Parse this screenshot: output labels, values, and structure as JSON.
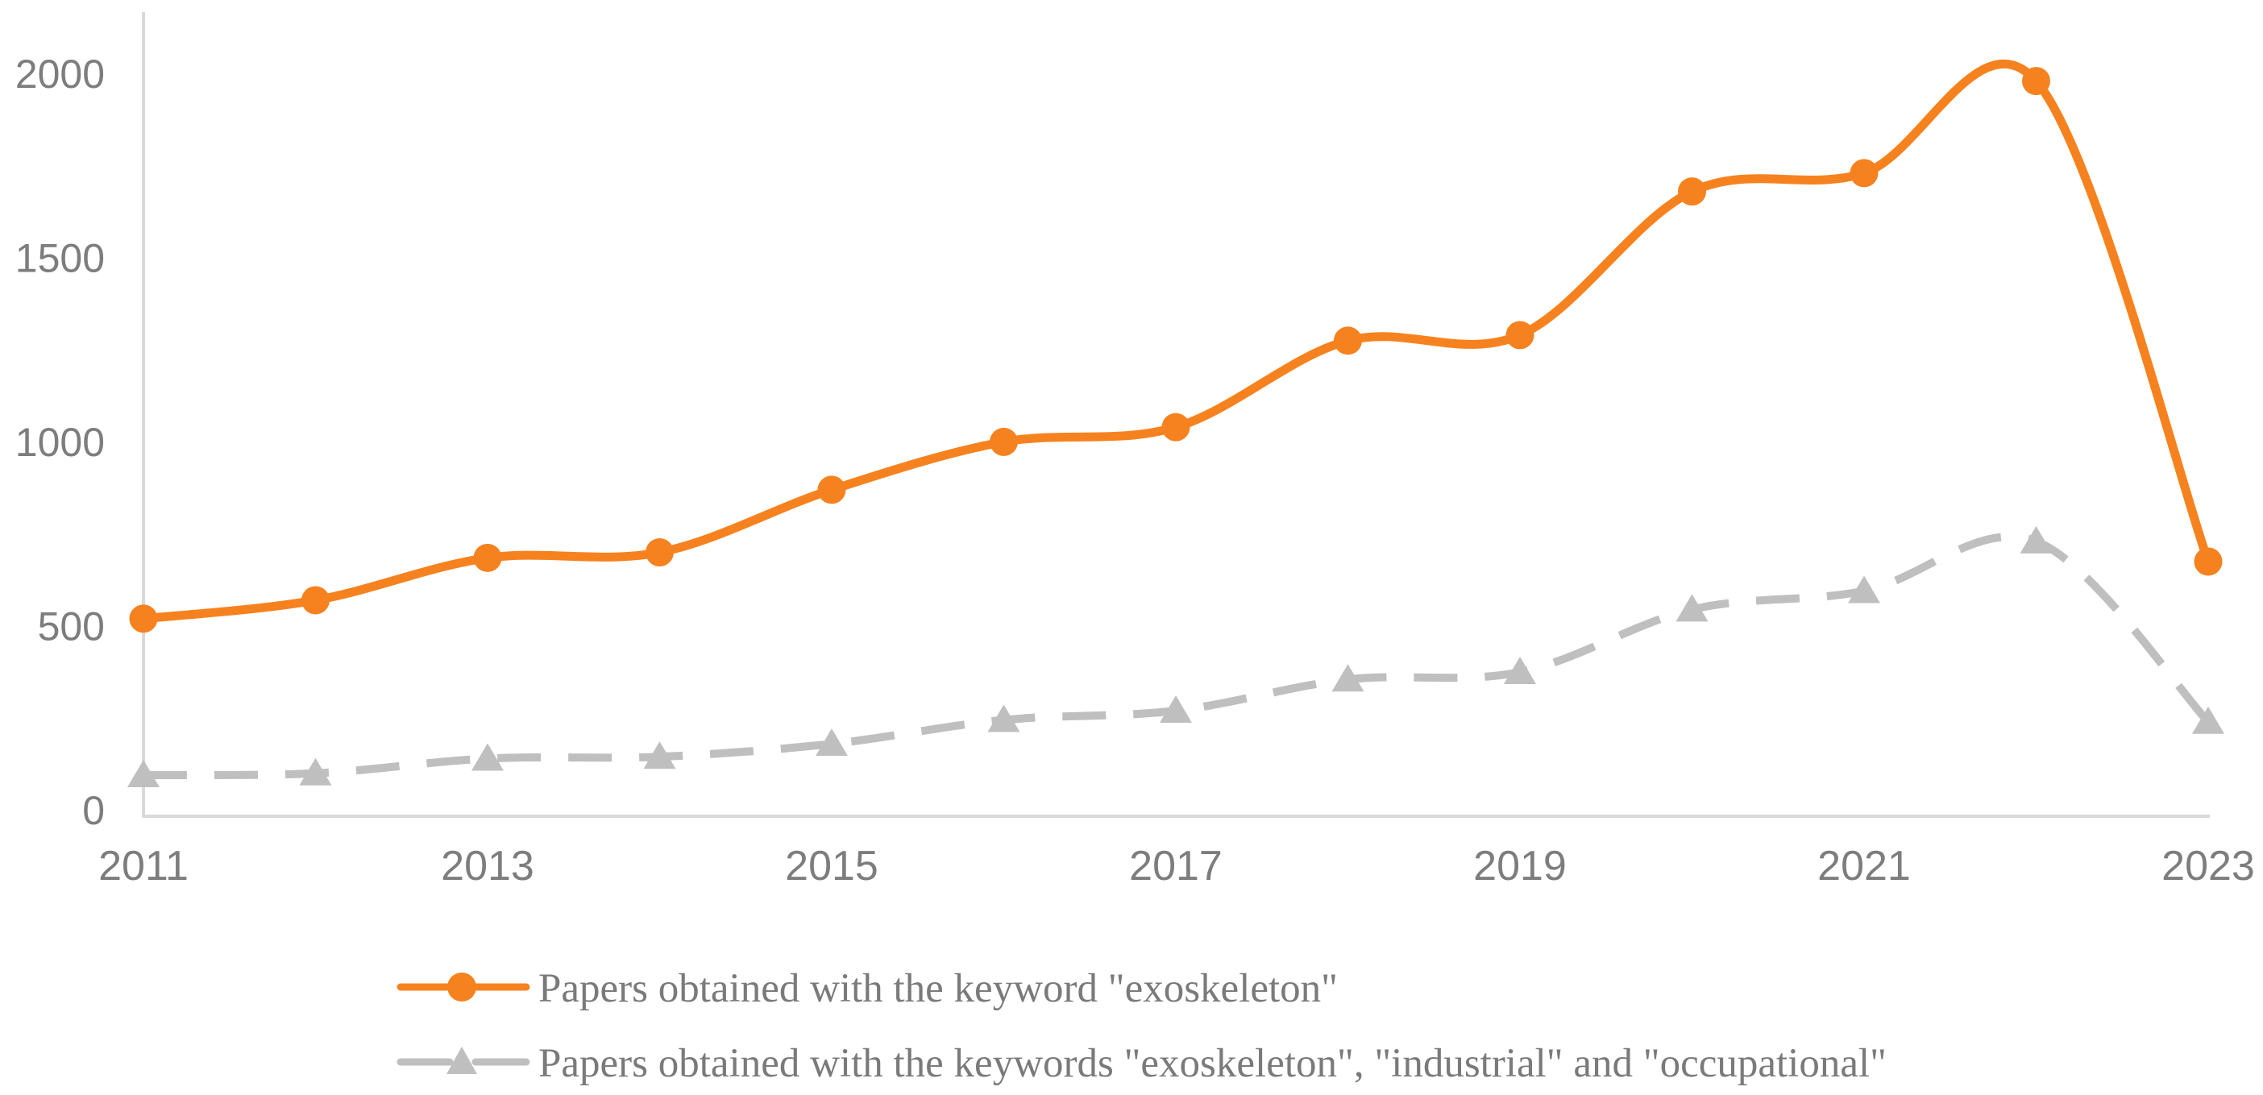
{
  "chart_data": {
    "type": "line",
    "title": "",
    "xlabel": "",
    "ylabel": "",
    "x": [
      2011,
      2012,
      2013,
      2014,
      2015,
      2016,
      2017,
      2018,
      2019,
      2020,
      2021,
      2022,
      2023
    ],
    "series": [
      {
        "name": "Papers obtained with the keyword \"exoskeleton\"",
        "values": [
          530,
          580,
          695,
          710,
          880,
          1010,
          1050,
          1285,
          1300,
          1690,
          1740,
          1990,
          685
        ],
        "color": "#F6821F",
        "marker": "circle",
        "line_style": "solid"
      },
      {
        "name": "Papers obtained with the keywords \"exoskeleton\", \"industrial\" and \"occupational\"",
        "values": [
          105,
          110,
          150,
          155,
          190,
          255,
          280,
          365,
          385,
          555,
          605,
          740,
          250
        ],
        "color": "#BFBFBF",
        "marker": "triangle",
        "line_style": "dashed"
      }
    ],
    "ylim": [
      0,
      2000
    ],
    "yticks": [
      "0",
      "500",
      "1000",
      "1500",
      "2000"
    ],
    "ytick_values": [
      0,
      500,
      1000,
      1500,
      2000
    ],
    "xtick_labels": [
      "2011",
      "2013",
      "2015",
      "2017",
      "2019",
      "2021",
      "2023"
    ],
    "xtick_years": [
      2011,
      2013,
      2015,
      2017,
      2019,
      2021,
      2023
    ],
    "grid": false,
    "smooth": true,
    "legend_position": "bottom-left"
  },
  "colors": {
    "series1": "#F6821F",
    "series2": "#BFBFBF",
    "axis_line": "#D9D9D9",
    "tick_text": "#7D7D7D",
    "legend_text": "#7A7A7A"
  }
}
